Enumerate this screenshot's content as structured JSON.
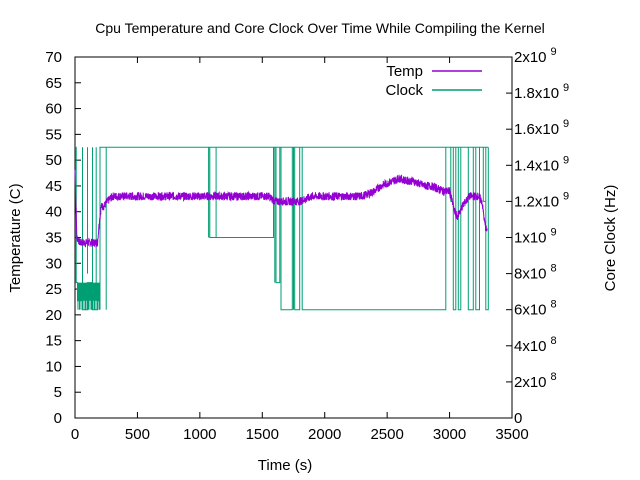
{
  "chart_data": {
    "type": "line",
    "title": "Cpu Temperature and Core Clock Over Time While Compiling the Kernel",
    "xlabel": "Time (s)",
    "ylabel": "Temperature (C)",
    "y2label": "Core Clock (Hz)",
    "xlim": [
      0,
      3500
    ],
    "ylim": [
      0,
      70
    ],
    "y2lim": [
      0,
      2000000000
    ],
    "x_ticks": [
      "0",
      "500",
      "1000",
      "1500",
      "2000",
      "2500",
      "3000",
      "3500"
    ],
    "y_ticks": [
      "0",
      "5",
      "10",
      "15",
      "20",
      "25",
      "30",
      "35",
      "40",
      "45",
      "50",
      "55",
      "60",
      "65",
      "70"
    ],
    "y2_ticks": [
      {
        "value": 0,
        "mantissa": "0",
        "exp": ""
      },
      {
        "value": 200000000,
        "mantissa": "2x10",
        "exp": "8"
      },
      {
        "value": 400000000,
        "mantissa": "4x10",
        "exp": "8"
      },
      {
        "value": 600000000,
        "mantissa": "6x10",
        "exp": "8"
      },
      {
        "value": 800000000,
        "mantissa": "8x10",
        "exp": "8"
      },
      {
        "value": 1000000000,
        "mantissa": "1x10",
        "exp": "9"
      },
      {
        "value": 1200000000,
        "mantissa": "1.2x10",
        "exp": "9"
      },
      {
        "value": 1400000000,
        "mantissa": "1.4x10",
        "exp": "9"
      },
      {
        "value": 1600000000,
        "mantissa": "1.6x10",
        "exp": "9"
      },
      {
        "value": 1800000000,
        "mantissa": "1.8x10",
        "exp": "9"
      },
      {
        "value": 2000000000,
        "mantissa": "2x10",
        "exp": "9"
      }
    ],
    "legend_position": "top-right",
    "grid": false,
    "series": [
      {
        "name": "Temp",
        "axis": "left",
        "color": "#9400d3",
        "x": [
          0,
          15,
          40,
          80,
          120,
          160,
          180,
          195,
          210,
          230,
          260,
          300,
          350,
          400,
          500,
          600,
          700,
          800,
          900,
          1000,
          1100,
          1200,
          1300,
          1400,
          1500,
          1550,
          1600,
          1700,
          1800,
          1900,
          2000,
          2100,
          2200,
          2300,
          2350,
          2400,
          2450,
          2500,
          2550,
          2600,
          2650,
          2700,
          2750,
          2800,
          2850,
          2900,
          2950,
          3000,
          3020,
          3040,
          3060,
          3080,
          3100,
          3130,
          3160,
          3200,
          3230,
          3260,
          3280,
          3300
        ],
        "y": [
          48,
          35,
          34,
          34,
          34,
          34,
          34,
          38,
          41,
          41,
          42,
          43,
          43,
          43,
          43,
          43,
          43,
          43,
          43,
          43,
          43,
          43,
          43,
          43,
          43,
          43,
          42,
          42,
          42,
          43,
          43,
          43,
          43,
          43,
          43.5,
          44,
          45,
          45.5,
          46,
          46.5,
          46,
          46,
          45.5,
          45,
          45,
          44.5,
          44,
          44,
          42,
          40,
          39,
          40,
          41,
          42,
          43,
          43,
          43,
          42,
          38,
          36
        ],
        "noise": 0.8
      },
      {
        "name": "Clock",
        "axis": "right",
        "color": "#009e73",
        "x": [
          0,
          10,
          20,
          60,
          100,
          140,
          180,
          200,
          230,
          250,
          1060,
          1080,
          1130,
          1590,
          1610,
          1640,
          1650,
          1740,
          1760,
          1800,
          1820,
          2970,
          3010,
          3030,
          3050,
          3070,
          3090,
          3150,
          3190,
          3210,
          3240,
          3270,
          3290,
          3310
        ],
        "y": [
          1500000000,
          750000000,
          650000000,
          600000000,
          750000000,
          600000000,
          650000000,
          1500000000,
          1500000000,
          1500000000,
          1500000000,
          1000000000,
          1000000000,
          1500000000,
          750000000,
          1500000000,
          600000000,
          1500000000,
          600000000,
          1500000000,
          600000000,
          1500000000,
          1200000000,
          600000000,
          1500000000,
          600000000,
          1500000000,
          600000000,
          1500000000,
          600000000,
          1500000000,
          1200000000,
          600000000,
          1500000000
        ],
        "drops": [
          [
            60,
            600000000
          ],
          [
            100,
            800000000
          ],
          [
            140,
            650000000
          ],
          [
            170,
            700000000
          ],
          [
            200,
            600000000
          ],
          [
            250,
            600000000
          ],
          [
            1070,
            1000000000
          ],
          [
            1130,
            1000000000
          ],
          [
            1600,
            750000000
          ],
          [
            1650,
            600000000
          ],
          [
            1750,
            600000000
          ],
          [
            1800,
            1500000000
          ],
          [
            1820,
            600000000
          ],
          [
            3010,
            1200000000
          ],
          [
            3030,
            600000000
          ],
          [
            3070,
            600000000
          ],
          [
            3150,
            600000000
          ],
          [
            3210,
            600000000
          ],
          [
            3270,
            1200000000
          ],
          [
            3290,
            600000000
          ]
        ],
        "baseline": 1500000000
      }
    ]
  }
}
